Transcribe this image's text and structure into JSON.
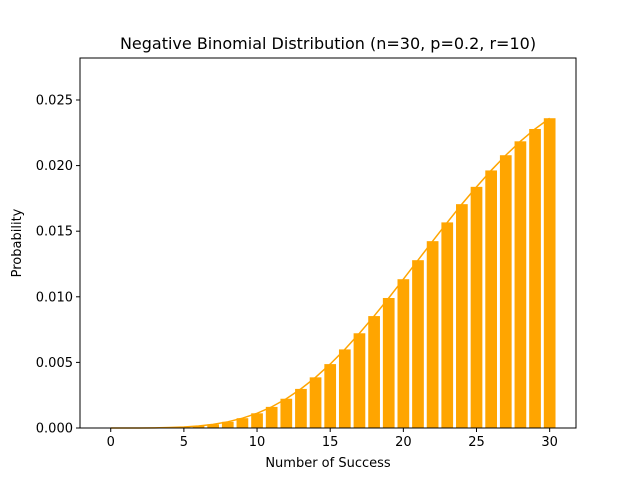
{
  "chart_data": {
    "type": "bar",
    "title": "Negative Binomial Distribution (n=30, p=0.2, r=10)",
    "xlabel": "Number of Success",
    "ylabel": "Probability",
    "x": [
      0,
      1,
      2,
      3,
      4,
      5,
      6,
      7,
      8,
      9,
      10,
      11,
      12,
      13,
      14,
      15,
      16,
      17,
      18,
      19,
      20,
      21,
      22,
      23,
      24,
      25,
      26,
      27,
      28,
      29,
      30
    ],
    "values": [
      1e-07,
      8e-07,
      4e-06,
      1.34e-05,
      3.49e-05,
      7.81e-05,
      0.000154,
      0.00028,
      0.000472,
      0.000748,
      0.00112,
      0.00161,
      0.00223,
      0.00298,
      0.00386,
      0.00487,
      0.00599,
      0.00722,
      0.00853,
      0.00991,
      0.01134,
      0.01279,
      0.01424,
      0.01567,
      0.01706,
      0.01838,
      0.01963,
      0.02079,
      0.02185,
      0.02279,
      0.02361
    ],
    "xlim": [
      -2.1,
      31.8
    ],
    "ylim": [
      0,
      0.0282
    ],
    "xticks": [
      0,
      5,
      10,
      15,
      20,
      25,
      30
    ],
    "xtick_labels": [
      "0",
      "5",
      "10",
      "15",
      "20",
      "25",
      "30"
    ],
    "yticks": [
      0,
      0.005,
      0.01,
      0.015,
      0.02,
      0.025
    ],
    "ytick_labels": [
      "0.000",
      "0.005",
      "0.010",
      "0.015",
      "0.020",
      "0.025"
    ],
    "bar_color": "#ffa500",
    "line_color": "#ffa500",
    "grid": false,
    "overlay": "line through bar tops"
  }
}
